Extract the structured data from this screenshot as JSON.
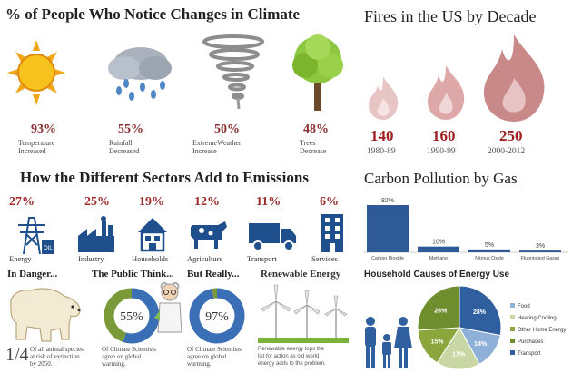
{
  "climate": {
    "title": "% of People Who Notice Changes in Climate",
    "items": [
      {
        "pct": "93%",
        "label1": "Temperature",
        "label2": "Increased",
        "icon": "sun-icon"
      },
      {
        "pct": "55%",
        "label1": "Rainfall",
        "label2": "Decreased",
        "icon": "rain-cloud-icon"
      },
      {
        "pct": "50%",
        "label1": "ExtremeWeather",
        "label2": "Increase",
        "icon": "tornado-icon"
      },
      {
        "pct": "48%",
        "label1": "Trees",
        "label2": "Decrease",
        "icon": "tree-icon"
      }
    ]
  },
  "fires": {
    "title": "Fires in the US by Decade",
    "items": [
      {
        "value": "140",
        "period": "1980-89"
      },
      {
        "value": "160",
        "period": "1990-99"
      },
      {
        "value": "250",
        "period": "2000-2012"
      }
    ]
  },
  "sectors": {
    "title": "How the Different Sectors Add to Emissions",
    "items": [
      {
        "pct": "27%",
        "label": "Energy",
        "icon": "power-pylon-icon"
      },
      {
        "pct": "25%",
        "label": "Industry",
        "icon": "factory-icon"
      },
      {
        "pct": "19%",
        "label": "Households",
        "icon": "house-icon"
      },
      {
        "pct": "12%",
        "label": "Agriculture",
        "icon": "cow-icon"
      },
      {
        "pct": "11%",
        "label": "Transport",
        "icon": "truck-icon"
      },
      {
        "pct": "6%",
        "label": "Services",
        "icon": "building-icon"
      }
    ]
  },
  "gas": {
    "title": "Carbon Pollution by Gas",
    "chart_data": {
      "type": "bar",
      "categories": [
        "Carbon Dioxide",
        "Methane",
        "Nitrous Oxide",
        "Fluorinated Gases"
      ],
      "values": [
        82,
        10,
        5,
        3
      ],
      "value_labels": [
        "82%",
        "10%",
        "5%",
        "3%"
      ],
      "ylim": [
        0,
        100
      ],
      "color": "#2e5b98"
    }
  },
  "danger": {
    "title": "In Danger...",
    "fraction": "1/4",
    "text1": "Of all animal species",
    "text2": "at risk of extinction",
    "text3": "by 2050."
  },
  "public": {
    "title": "The Public Think...",
    "chart_data": {
      "type": "pie",
      "values": [
        55,
        45
      ],
      "value_label": "55%",
      "colors": [
        "#3a6fb5",
        "#7a9a3a"
      ]
    },
    "text1": "Of Climate Scientists",
    "text2": "agree on global",
    "text3": "warming."
  },
  "really": {
    "title": "But Really...",
    "chart_data": {
      "type": "pie",
      "values": [
        97,
        3
      ],
      "value_label": "97%",
      "colors": [
        "#3a6fb5",
        "#7a9a3a"
      ]
    },
    "text1": "Of Climate Scientists",
    "text2": "agree on global",
    "text3": "warming."
  },
  "renewable": {
    "title": "Renewable Energy",
    "text1": "Renewable energy tops the",
    "text2": "list for action as old world",
    "text3": "energy adds to the problem."
  },
  "household": {
    "title": "Household Causes of Energy Use",
    "chart_data": {
      "type": "pie",
      "categories": [
        "Food",
        "Heating Cooling",
        "Other Home Energy",
        "Purchases",
        "Transport"
      ],
      "values": [
        14,
        17,
        15,
        26,
        28
      ],
      "value_labels": [
        "14%",
        "17%",
        "15%",
        "26%",
        "28%"
      ],
      "colors": [
        "#8fb0d8",
        "#c9d7a4",
        "#8aa63c",
        "#6f8f2f",
        "#2f5f9e"
      ]
    }
  }
}
